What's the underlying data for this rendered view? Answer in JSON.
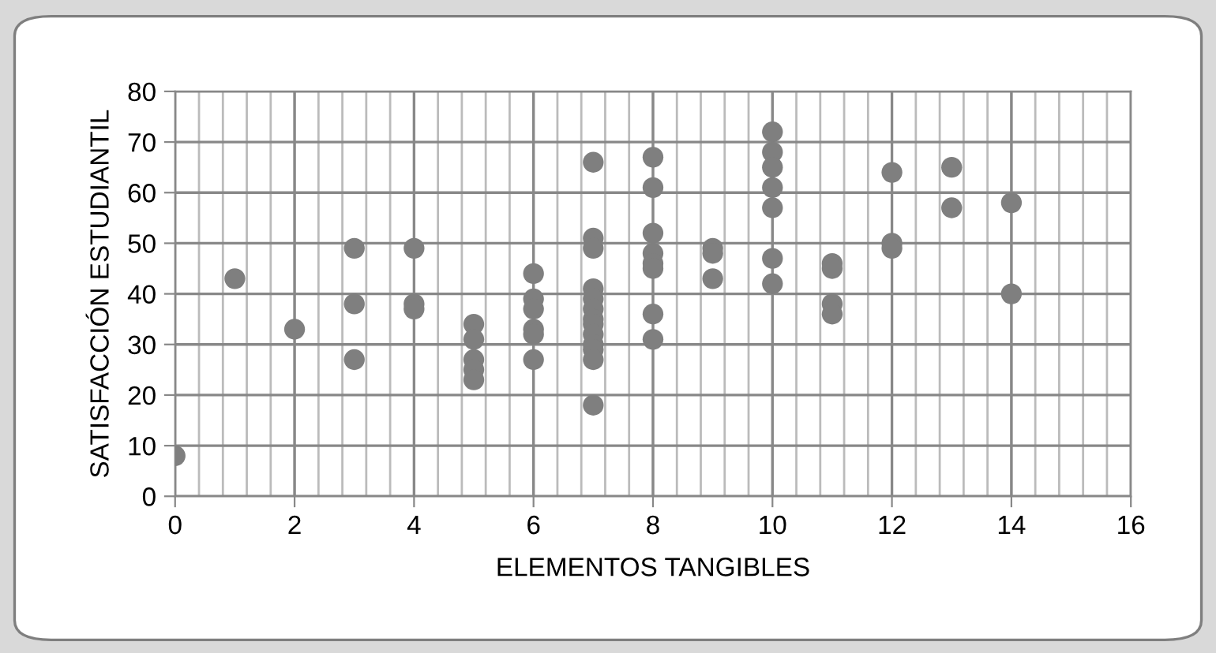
{
  "chart_data": {
    "type": "scatter",
    "xlabel": "ELEMENTOS TANGIBLES",
    "ylabel": "SATISFACCIÓN ESTUDIANTIL",
    "xlim": [
      0,
      16
    ],
    "xticks": [
      0,
      2,
      4,
      6,
      8,
      10,
      12,
      14,
      16
    ],
    "ylim": [
      0,
      80
    ],
    "yticks": [
      0,
      10,
      20,
      30,
      40,
      50,
      60,
      70,
      80
    ],
    "grid": true,
    "marker": "circle",
    "legend": false,
    "series": [
      {
        "color": "#7f7f7f",
        "x": [
          0,
          1,
          2,
          3,
          3,
          3,
          4,
          4,
          4,
          5,
          5,
          5,
          5,
          5,
          6,
          6,
          6,
          6,
          6,
          6,
          7,
          7,
          7,
          7,
          7,
          7,
          7,
          7,
          7,
          7,
          7,
          7,
          7,
          8,
          8,
          8,
          8,
          8,
          8,
          8,
          8,
          9,
          9,
          9,
          10,
          10,
          10,
          10,
          10,
          10,
          10,
          11,
          11,
          11,
          11,
          12,
          12,
          12,
          13,
          13,
          14,
          14
        ],
        "values": [
          8,
          43,
          33,
          49,
          38,
          27,
          49,
          38,
          37,
          34,
          31,
          27,
          25,
          23,
          44,
          39,
          37,
          33,
          32,
          27,
          66,
          51,
          49,
          41,
          39,
          37,
          35,
          34,
          32,
          30,
          29,
          27,
          18,
          67,
          61,
          52,
          48,
          46,
          45,
          36,
          31,
          49,
          48,
          43,
          72,
          68,
          65,
          61,
          57,
          47,
          42,
          46,
          45,
          38,
          36,
          64,
          50,
          49,
          65,
          57,
          58,
          40
        ]
      }
    ]
  }
}
